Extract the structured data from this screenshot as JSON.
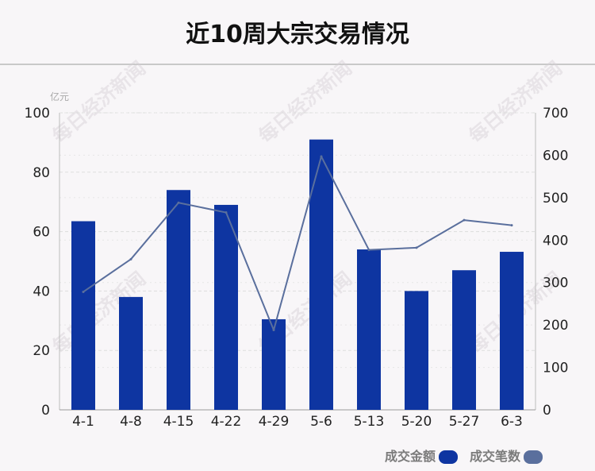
{
  "title": "近10周大宗交易情况",
  "watermark_text": "每日经济新闻",
  "colors": {
    "bar": "#0e35a1",
    "line": "#5a6f9d",
    "text": "#222222",
    "legend_text": "#7b7b7b",
    "grid": "#dddddd"
  },
  "chart_data": {
    "type": "bar+line",
    "categories": [
      "4-1",
      "4-8",
      "4-15",
      "4-22",
      "4-29",
      "5-6",
      "5-13",
      "5-20",
      "5-27",
      "6-3"
    ],
    "series": [
      {
        "name": "成交金额",
        "type": "bar",
        "axis": "left",
        "values": [
          63.5,
          38,
          74,
          69,
          30.5,
          91,
          54,
          40,
          47,
          53.2
        ]
      },
      {
        "name": "成交笔数",
        "type": "line",
        "axis": "right",
        "values": [
          278,
          355,
          488,
          465,
          188,
          597,
          377,
          382,
          447,
          435
        ]
      }
    ],
    "left_axis": {
      "unit": "亿元",
      "min": 0,
      "max": 100,
      "ticks": [
        "0",
        "20",
        "40",
        "60",
        "80",
        "100"
      ]
    },
    "right_axis": {
      "min": 0,
      "max": 700,
      "ticks": [
        "0",
        "100",
        "200",
        "300",
        "400",
        "500",
        "600",
        "700"
      ]
    },
    "legend": [
      {
        "label": "成交金额",
        "color": "#0e35a1"
      },
      {
        "label": "成交笔数",
        "color": "#5a6f9d"
      }
    ],
    "legend_position": "bottom-right",
    "grid": true
  }
}
